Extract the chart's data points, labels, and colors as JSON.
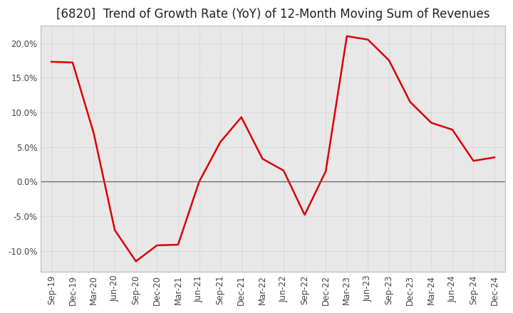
{
  "title": "[6820]  Trend of Growth Rate (YoY) of 12-Month Moving Sum of Revenues",
  "x_labels": [
    "Sep-19",
    "Dec-19",
    "Mar-20",
    "Jun-20",
    "Sep-20",
    "Dec-20",
    "Mar-21",
    "Jun-21",
    "Sep-21",
    "Dec-21",
    "Mar-22",
    "Jun-22",
    "Sep-22",
    "Dec-22",
    "Mar-23",
    "Jun-23",
    "Sep-23",
    "Dec-23",
    "Mar-24",
    "Jun-24",
    "Sep-24",
    "Dec-24"
  ],
  "y_values": [
    0.173,
    0.172,
    0.07,
    -0.07,
    -0.115,
    -0.092,
    -0.091,
    0.0,
    0.057,
    0.093,
    0.033,
    0.016,
    -0.048,
    0.015,
    0.21,
    0.205,
    0.175,
    0.115,
    0.085,
    0.075,
    0.03,
    0.035
  ],
  "line_color": "#dd0000",
  "line_width": 1.8,
  "background_color": "#ffffff",
  "plot_bg_color": "#e8e8e8",
  "grid_color": "#bbbbbb",
  "zero_line_color": "#666666",
  "ylim": [
    -0.13,
    0.225
  ],
  "yticks": [
    -0.1,
    -0.05,
    0.0,
    0.05,
    0.1,
    0.15,
    0.2
  ],
  "title_fontsize": 12,
  "tick_fontsize": 8.5,
  "title_color": "#222222"
}
